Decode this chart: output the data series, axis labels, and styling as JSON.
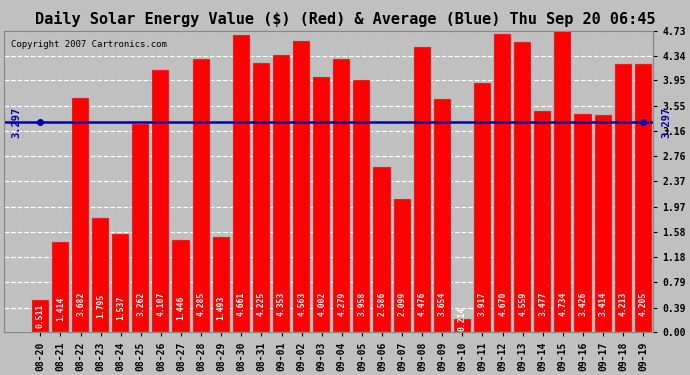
{
  "title": "Daily Solar Energy Value ($) (Red) & Average (Blue) Thu Sep 20 06:45",
  "copyright": "Copyright 2007 Cartronics.com",
  "categories": [
    "08-20",
    "08-21",
    "08-22",
    "08-23",
    "08-24",
    "08-25",
    "08-26",
    "08-27",
    "08-28",
    "08-29",
    "08-30",
    "08-31",
    "09-01",
    "09-02",
    "09-03",
    "09-04",
    "09-05",
    "09-06",
    "09-07",
    "09-08",
    "09-09",
    "09-10",
    "09-11",
    "09-12",
    "09-13",
    "09-14",
    "09-15",
    "09-16",
    "09-17",
    "09-18",
    "09-19"
  ],
  "values": [
    0.511,
    1.414,
    3.682,
    1.795,
    1.537,
    3.262,
    4.107,
    1.446,
    4.285,
    1.493,
    4.661,
    4.225,
    4.353,
    4.563,
    4.002,
    4.279,
    3.958,
    2.586,
    2.099,
    4.476,
    3.654,
    0.214,
    3.917,
    4.67,
    4.559,
    3.477,
    4.734,
    3.426,
    3.414,
    4.213,
    4.205
  ],
  "average": 3.297,
  "avg_label": "3.297",
  "bar_color": "#ff0000",
  "avg_line_color": "#0000bb",
  "bg_color": "#c0c0c0",
  "plot_bg_color": "#c0c0c0",
  "ylim": [
    0.0,
    4.73
  ],
  "yticks": [
    0.0,
    0.39,
    0.79,
    1.18,
    1.58,
    1.97,
    2.37,
    2.76,
    3.16,
    3.55,
    3.95,
    4.34,
    4.73
  ],
  "title_fontsize": 11,
  "copyright_fontsize": 6.5,
  "label_fontsize": 5.8,
  "tick_fontsize": 7,
  "avg_label_fontsize": 7.5
}
